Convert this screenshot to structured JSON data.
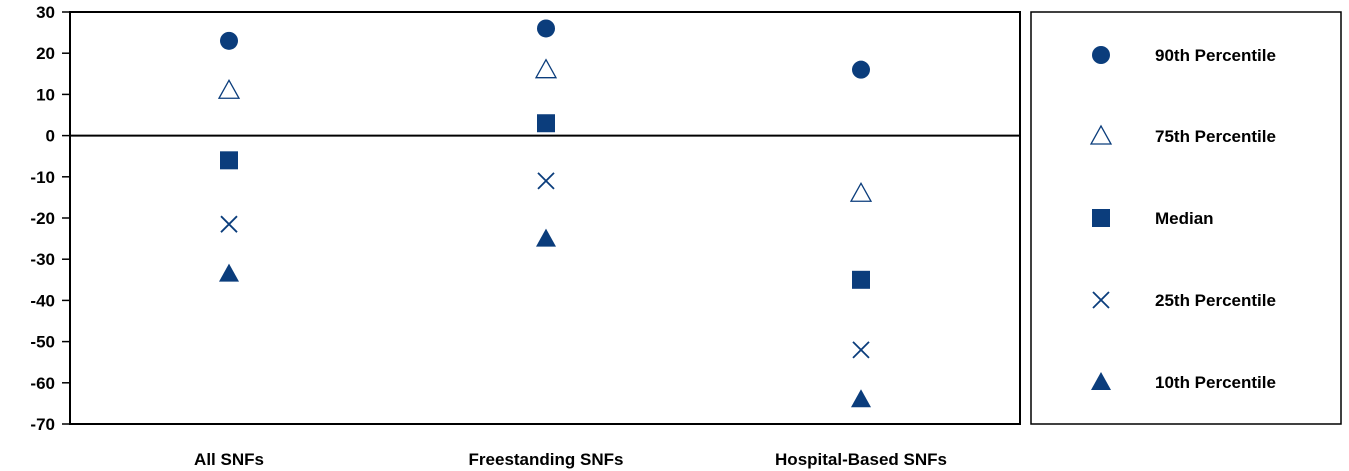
{
  "chart_data": {
    "type": "scatter",
    "title": "",
    "xlabel": "",
    "ylabel": "",
    "categories": [
      "All SNFs",
      "Freestanding SNFs",
      "Hospital-Based SNFs"
    ],
    "ylim": [
      -70,
      30
    ],
    "yticks": [
      30,
      20,
      10,
      0,
      -10,
      -20,
      -30,
      -40,
      -50,
      -60,
      -70
    ],
    "grid": false,
    "zero_line": true,
    "legend_position": "right",
    "series": [
      {
        "name": "90th Percentile",
        "marker": "circle",
        "values": [
          23,
          26,
          16
        ]
      },
      {
        "name": "75th Percentile",
        "marker": "triangle-open",
        "values": [
          11,
          16,
          -14
        ]
      },
      {
        "name": "Median",
        "marker": "square",
        "values": [
          -6,
          3,
          -35
        ]
      },
      {
        "name": "25th Percentile",
        "marker": "x",
        "values": [
          -21.5,
          -11,
          -52
        ]
      },
      {
        "name": "10th Percentile",
        "marker": "triangle",
        "values": [
          -33.5,
          -25,
          -64
        ]
      }
    ],
    "color": "#0b3d7c"
  }
}
